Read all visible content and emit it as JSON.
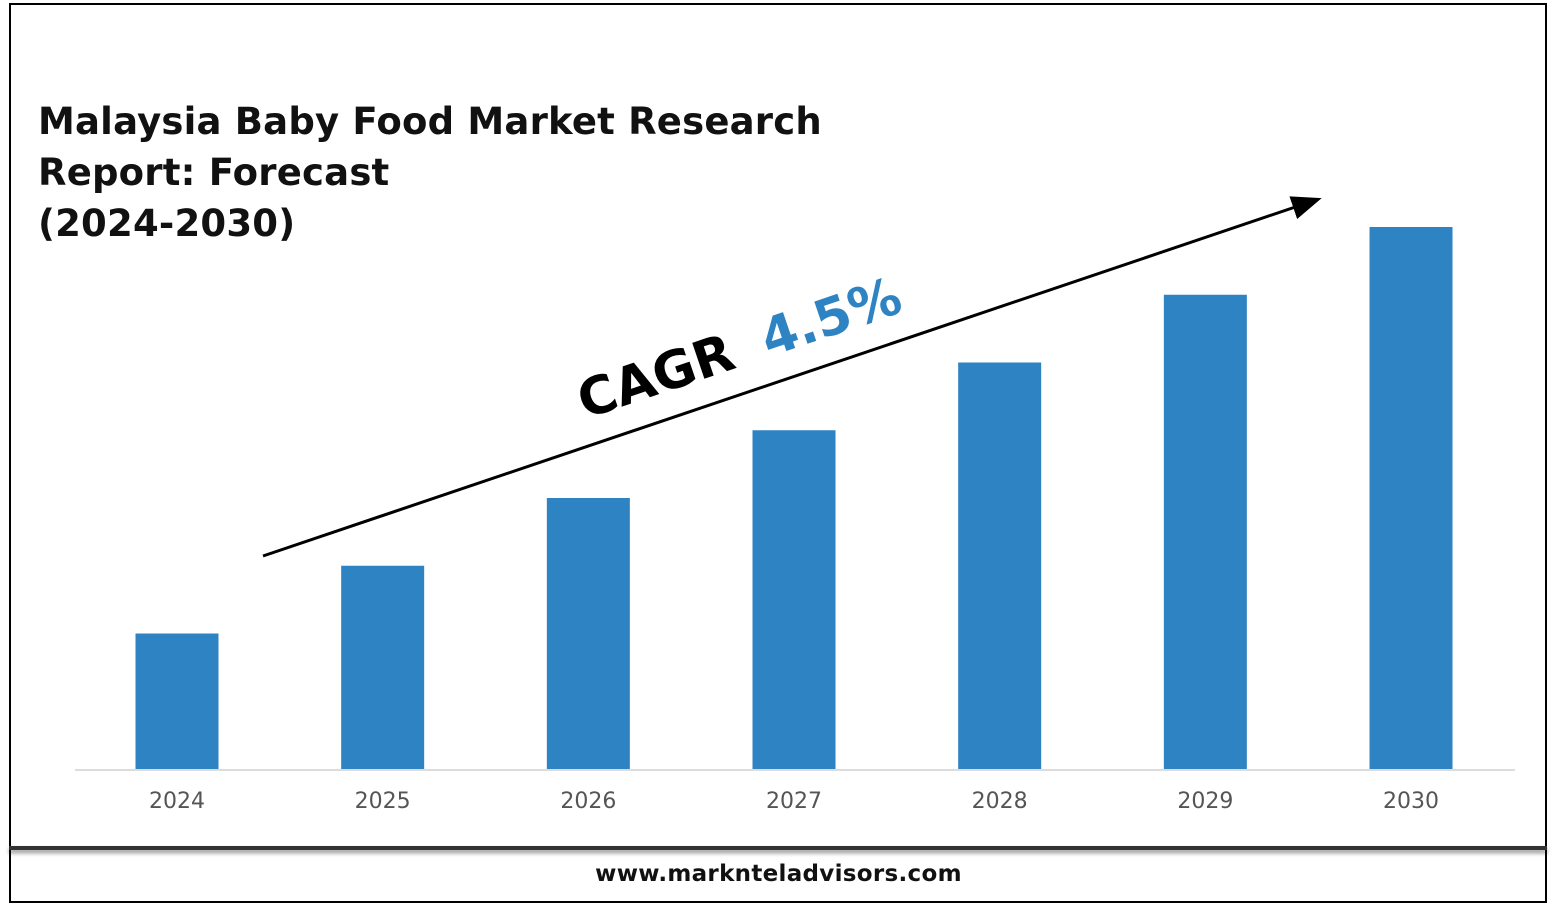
{
  "title_lines": [
    "Malaysia Baby Food Market Research",
    "Report: Forecast",
    "(2024-2030)"
  ],
  "footer": "www.marknteladvisors.com",
  "annotation": {
    "label": "CAGR",
    "value": "4.5%",
    "value_color": "#2e83c3"
  },
  "chart_data": {
    "type": "bar",
    "title": "Malaysia Baby Food Market Research Report: Forecast (2024-2030)",
    "categories": [
      "2024",
      "2025",
      "2026",
      "2027",
      "2028",
      "2029",
      "2030"
    ],
    "values": [
      1.0,
      1.5,
      2.0,
      2.5,
      3.0,
      3.5,
      4.0
    ],
    "ylim": [
      0,
      4.0
    ],
    "bar_color": "#2e83c3",
    "grid": false,
    "y_axis_visible": false
  }
}
